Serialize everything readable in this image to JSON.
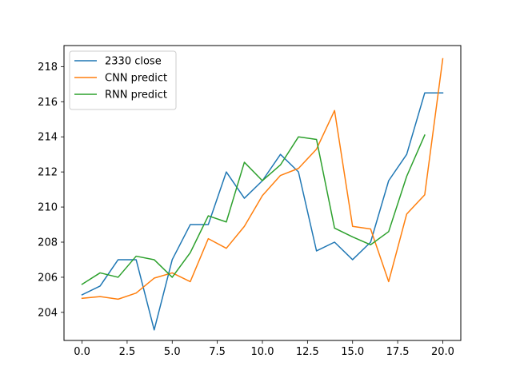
{
  "chart_data": {
    "type": "line",
    "title": "",
    "xlabel": "",
    "ylabel": "",
    "xlim": [
      -1.0,
      21.0
    ],
    "ylim": [
      202.4,
      219.2
    ],
    "xticks": [
      0.0,
      2.5,
      5.0,
      7.5,
      10.0,
      12.5,
      15.0,
      17.5,
      20.0
    ],
    "xtick_labels": [
      "0.0",
      "2.5",
      "5.0",
      "7.5",
      "10.0",
      "12.5",
      "15.0",
      "17.5",
      "20.0"
    ],
    "yticks": [
      204,
      206,
      208,
      210,
      212,
      214,
      216,
      218
    ],
    "ytick_labels": [
      "204",
      "206",
      "208",
      "210",
      "212",
      "214",
      "216",
      "218"
    ],
    "grid": false,
    "legend_position": "upper-left",
    "series": [
      {
        "name": "2330 close",
        "color": "#1f77b4",
        "x": [
          0,
          1,
          2,
          3,
          4,
          5,
          6,
          7,
          8,
          9,
          10,
          11,
          12,
          13,
          14,
          15,
          16,
          17,
          18,
          19,
          20
        ],
        "values": [
          205.0,
          205.5,
          207.0,
          207.0,
          203.0,
          207.0,
          209.0,
          209.0,
          212.0,
          210.5,
          211.5,
          213.0,
          212.0,
          207.5,
          208.0,
          207.0,
          208.0,
          211.5,
          213.0,
          216.5,
          216.5
        ]
      },
      {
        "name": "CNN predict",
        "color": "#ff7f0e",
        "x": [
          0,
          1,
          2,
          3,
          4,
          5,
          6,
          7,
          8,
          9,
          10,
          11,
          12,
          13,
          14,
          15,
          16,
          17,
          18,
          19,
          20
        ],
        "values": [
          204.8,
          204.9,
          204.75,
          205.1,
          205.95,
          206.25,
          205.75,
          208.2,
          207.65,
          208.9,
          210.65,
          211.8,
          212.2,
          213.3,
          215.5,
          208.9,
          208.75,
          205.75,
          209.6,
          210.7,
          218.45
        ]
      },
      {
        "name": "RNN predict",
        "color": "#2ca02c",
        "x": [
          0,
          1,
          2,
          3,
          4,
          5,
          6,
          7,
          8,
          9,
          10,
          11,
          12,
          13,
          14,
          15,
          16,
          17,
          18,
          19
        ],
        "values": [
          205.6,
          206.25,
          206.0,
          207.2,
          207.0,
          206.0,
          207.4,
          209.5,
          209.15,
          212.55,
          211.5,
          212.4,
          214.0,
          213.85,
          208.8,
          208.3,
          207.85,
          208.6,
          211.75,
          214.1
        ]
      }
    ]
  }
}
